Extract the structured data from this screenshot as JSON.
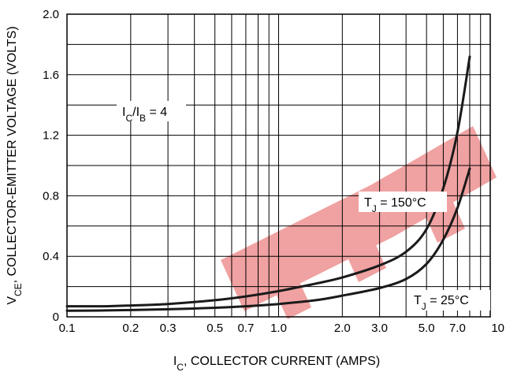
{
  "chart_data": {
    "type": "line",
    "x_scale": "log",
    "y_scale": "linear",
    "xlim": [
      0.1,
      10
    ],
    "ylim": [
      0,
      2.0
    ],
    "grid": true,
    "xlabel": {
      "prefix": "I",
      "sub": "C",
      "rest": ", COLLECTOR CURRENT (AMPS)"
    },
    "ylabel": {
      "prefix": "V",
      "sub": "CE",
      "rest": ", COLLECTOR-EMITTER VOLTAGE (VOLTS)"
    },
    "x_tick_labels": [
      {
        "value": 0.1,
        "label": "0.1"
      },
      {
        "value": 0.2,
        "label": "0.2"
      },
      {
        "value": 0.3,
        "label": "0.3"
      },
      {
        "value": 0.5,
        "label": "0.5"
      },
      {
        "value": 0.7,
        "label": "0.7"
      },
      {
        "value": 1.0,
        "label": "1.0"
      },
      {
        "value": 2.0,
        "label": "2.0"
      },
      {
        "value": 3.0,
        "label": "3.0"
      },
      {
        "value": 5.0,
        "label": "5.0"
      },
      {
        "value": 7.0,
        "label": "7.0"
      },
      {
        "value": 10,
        "label": "10"
      }
    ],
    "y_tick_labels": [
      {
        "value": 0,
        "label": "0"
      },
      {
        "value": 0.4,
        "label": "0.4"
      },
      {
        "value": 0.8,
        "label": "0.8"
      },
      {
        "value": 1.2,
        "label": "1.2"
      },
      {
        "value": 1.6,
        "label": "1.6"
      },
      {
        "value": 2.0,
        "label": "2.0"
      }
    ],
    "annotations": {
      "ratio": {
        "p1": "I",
        "s1": "C",
        "p2": "/I",
        "s2": "B",
        "p3": " = 4"
      },
      "tj150": {
        "p1": "T",
        "s1": "J",
        "p2": " = 150°C"
      },
      "tj25": {
        "p1": "T",
        "s1": "J",
        "p2": " = 25°C"
      }
    },
    "series": [
      {
        "name": "TJ = 150°C",
        "x": [
          0.1,
          0.15,
          0.2,
          0.3,
          0.5,
          0.7,
          1.0,
          1.5,
          2.0,
          3.0,
          4.0,
          5.0,
          6.0,
          7.0,
          8.0
        ],
        "y": [
          0.07,
          0.07,
          0.075,
          0.085,
          0.11,
          0.135,
          0.17,
          0.22,
          0.26,
          0.34,
          0.43,
          0.58,
          0.85,
          1.22,
          1.72
        ]
      },
      {
        "name": "TJ = 25°C",
        "x": [
          0.1,
          0.15,
          0.2,
          0.3,
          0.5,
          0.7,
          1.0,
          1.5,
          2.0,
          3.0,
          4.0,
          5.0,
          6.0,
          7.0,
          8.0
        ],
        "y": [
          0.04,
          0.042,
          0.045,
          0.05,
          0.06,
          0.07,
          0.085,
          0.11,
          0.14,
          0.19,
          0.25,
          0.35,
          0.51,
          0.72,
          0.98
        ]
      }
    ],
    "colors": {
      "curve": "#1a1a1a",
      "grid": "#000000",
      "watermark": "#e03030"
    }
  }
}
